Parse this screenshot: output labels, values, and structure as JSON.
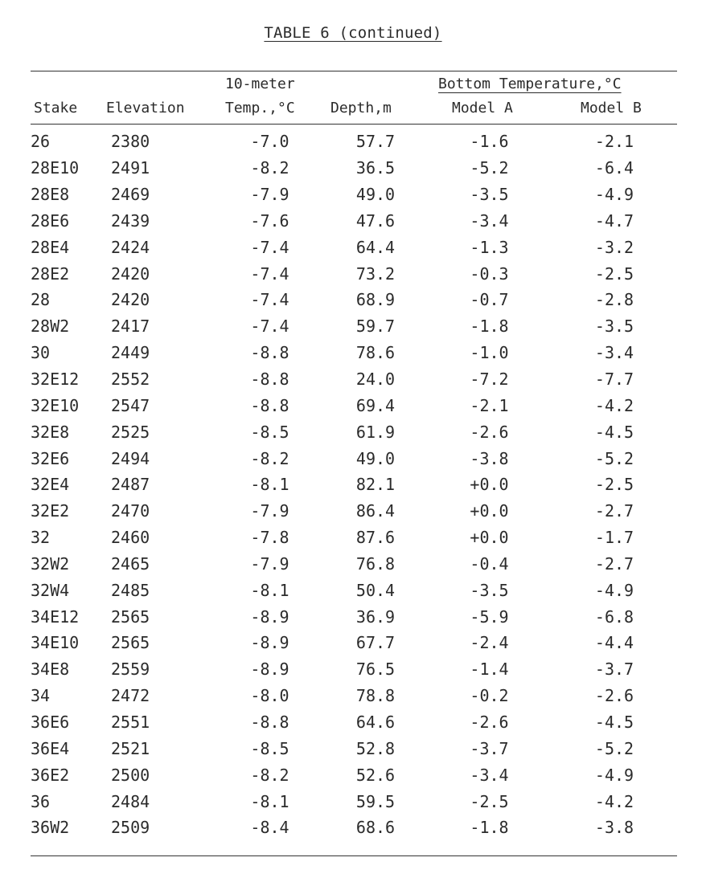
{
  "title": "TABLE 6 (continued)",
  "headers": {
    "stake": "Stake",
    "elevation": "Elevation",
    "temp_line1": "10-meter",
    "temp_line2": "Temp.,°C",
    "depth": "Depth,m",
    "group": "Bottom Temperature,°C",
    "model_a": "Model A",
    "model_b": "Model B"
  },
  "rows": [
    {
      "stake": "26",
      "elevation": "2380",
      "temp": "-7.0",
      "depth": "57.7",
      "model_a": "-1.6",
      "model_b": "-2.1"
    },
    {
      "stake": "28E10",
      "elevation": "2491",
      "temp": "-8.2",
      "depth": "36.5",
      "model_a": "-5.2",
      "model_b": "-6.4"
    },
    {
      "stake": "28E8",
      "elevation": "2469",
      "temp": "-7.9",
      "depth": "49.0",
      "model_a": "-3.5",
      "model_b": "-4.9"
    },
    {
      "stake": "28E6",
      "elevation": "2439",
      "temp": "-7.6",
      "depth": "47.6",
      "model_a": "-3.4",
      "model_b": "-4.7"
    },
    {
      "stake": "28E4",
      "elevation": "2424",
      "temp": "-7.4",
      "depth": "64.4",
      "model_a": "-1.3",
      "model_b": "-3.2"
    },
    {
      "stake": "28E2",
      "elevation": "2420",
      "temp": "-7.4",
      "depth": "73.2",
      "model_a": "-0.3",
      "model_b": "-2.5"
    },
    {
      "stake": "28",
      "elevation": "2420",
      "temp": "-7.4",
      "depth": "68.9",
      "model_a": "-0.7",
      "model_b": "-2.8"
    },
    {
      "stake": "28W2",
      "elevation": "2417",
      "temp": "-7.4",
      "depth": "59.7",
      "model_a": "-1.8",
      "model_b": "-3.5"
    },
    {
      "stake": "30",
      "elevation": "2449",
      "temp": "-8.8",
      "depth": "78.6",
      "model_a": "-1.0",
      "model_b": "-3.4"
    },
    {
      "stake": "32E12",
      "elevation": "2552",
      "temp": "-8.8",
      "depth": "24.0",
      "model_a": "-7.2",
      "model_b": "-7.7"
    },
    {
      "stake": "32E10",
      "elevation": "2547",
      "temp": "-8.8",
      "depth": "69.4",
      "model_a": "-2.1",
      "model_b": "-4.2"
    },
    {
      "stake": "32E8",
      "elevation": "2525",
      "temp": "-8.5",
      "depth": "61.9",
      "model_a": "-2.6",
      "model_b": "-4.5"
    },
    {
      "stake": "32E6",
      "elevation": "2494",
      "temp": "-8.2",
      "depth": "49.0",
      "model_a": "-3.8",
      "model_b": "-5.2"
    },
    {
      "stake": "32E4",
      "elevation": "2487",
      "temp": "-8.1",
      "depth": "82.1",
      "model_a": "+0.0",
      "model_b": "-2.5"
    },
    {
      "stake": "32E2",
      "elevation": "2470",
      "temp": "-7.9",
      "depth": "86.4",
      "model_a": "+0.0",
      "model_b": "-2.7"
    },
    {
      "stake": "32",
      "elevation": "2460",
      "temp": "-7.8",
      "depth": "87.6",
      "model_a": "+0.0",
      "model_b": "-1.7"
    },
    {
      "stake": "32W2",
      "elevation": "2465",
      "temp": "-7.9",
      "depth": "76.8",
      "model_a": "-0.4",
      "model_b": "-2.7"
    },
    {
      "stake": "32W4",
      "elevation": "2485",
      "temp": "-8.1",
      "depth": "50.4",
      "model_a": "-3.5",
      "model_b": "-4.9"
    },
    {
      "stake": "34E12",
      "elevation": "2565",
      "temp": "-8.9",
      "depth": "36.9",
      "model_a": "-5.9",
      "model_b": "-6.8"
    },
    {
      "stake": "34E10",
      "elevation": "2565",
      "temp": "-8.9",
      "depth": "67.7",
      "model_a": "-2.4",
      "model_b": "-4.4"
    },
    {
      "stake": "34E8",
      "elevation": "2559",
      "temp": "-8.9",
      "depth": "76.5",
      "model_a": "-1.4",
      "model_b": "-3.7"
    },
    {
      "stake": "34",
      "elevation": "2472",
      "temp": "-8.0",
      "depth": "78.8",
      "model_a": "-0.2",
      "model_b": "-2.6"
    },
    {
      "stake": "36E6",
      "elevation": "2551",
      "temp": "-8.8",
      "depth": "64.6",
      "model_a": "-2.6",
      "model_b": "-4.5"
    },
    {
      "stake": "36E4",
      "elevation": "2521",
      "temp": "-8.5",
      "depth": "52.8",
      "model_a": "-3.7",
      "model_b": "-5.2"
    },
    {
      "stake": "36E2",
      "elevation": "2500",
      "temp": "-8.2",
      "depth": "52.6",
      "model_a": "-3.4",
      "model_b": "-4.9"
    },
    {
      "stake": "36",
      "elevation": "2484",
      "temp": "-8.1",
      "depth": "59.5",
      "model_a": "-2.5",
      "model_b": "-4.2"
    },
    {
      "stake": "36W2",
      "elevation": "2509",
      "temp": "-8.4",
      "depth": "68.6",
      "model_a": "-1.8",
      "model_b": "-3.8"
    }
  ]
}
